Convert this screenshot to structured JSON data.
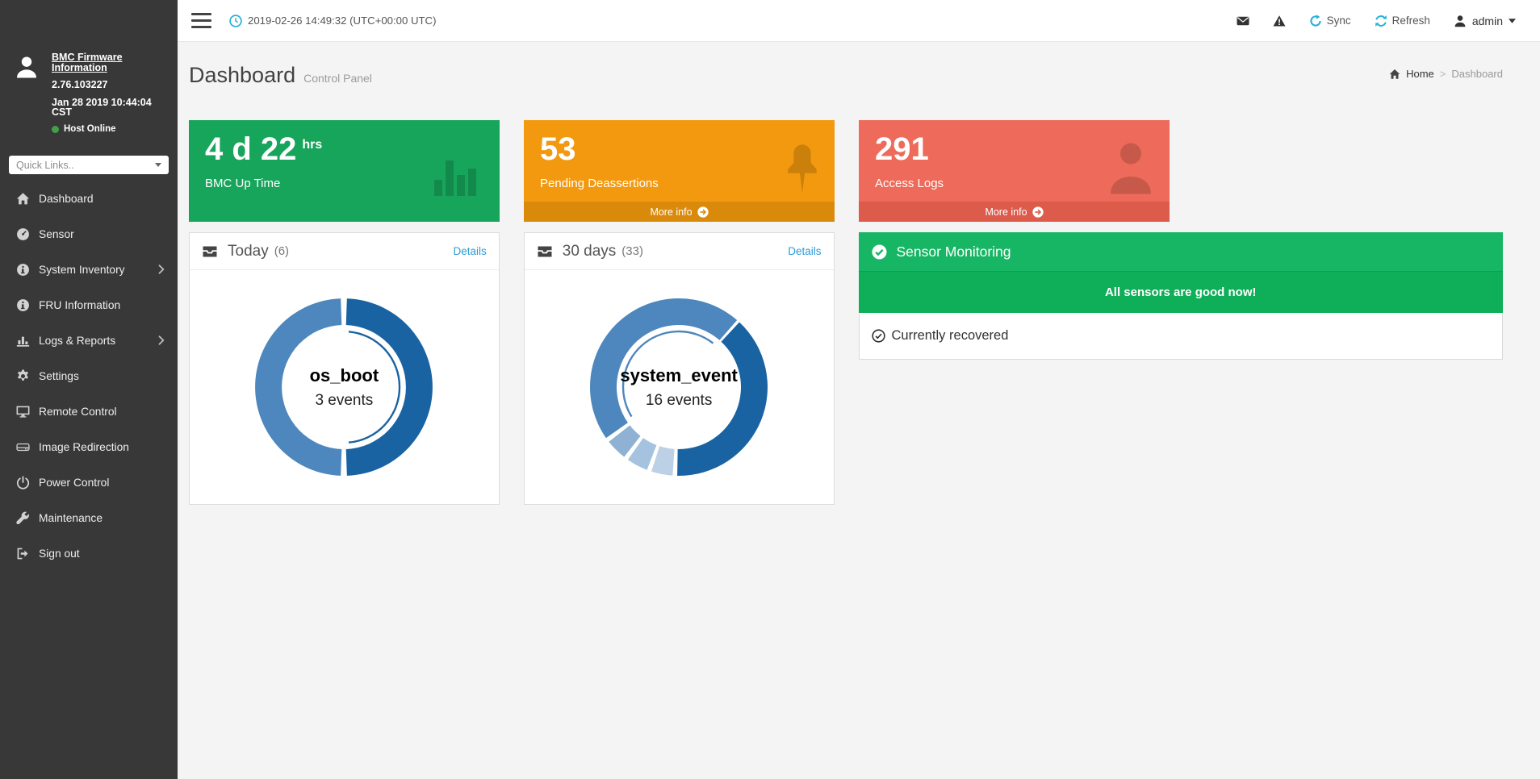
{
  "colors": {
    "accent_cyan": "#25b2d8",
    "link_blue": "#2d9bd8",
    "host_online_green": "#43a047",
    "sidebar_bg": "#383838"
  },
  "sidebar": {
    "firmware_link": "BMC Firmware Information",
    "firmware_version": "2.76.103227",
    "firmware_date": "Jan 28 2019 10:44:04 CST",
    "host_status": "Host Online",
    "quick_links_placeholder": "Quick Links..",
    "menu": [
      {
        "label": "Dashboard",
        "icon": "home"
      },
      {
        "label": "Sensor",
        "icon": "gauge"
      },
      {
        "label": "System Inventory",
        "icon": "info",
        "expandable": true
      },
      {
        "label": "FRU Information",
        "icon": "info"
      },
      {
        "label": "Logs & Reports",
        "icon": "chart-bar",
        "expandable": true
      },
      {
        "label": "Settings",
        "icon": "gear"
      },
      {
        "label": "Remote Control",
        "icon": "monitor"
      },
      {
        "label": "Image Redirection",
        "icon": "hdd"
      },
      {
        "label": "Power Control",
        "icon": "power"
      },
      {
        "label": "Maintenance",
        "icon": "wrench"
      },
      {
        "label": "Sign out",
        "icon": "signout"
      }
    ]
  },
  "topbar": {
    "datetime": "2019-02-26 14:49:32 (UTC+00:00 UTC)",
    "sync_label": "Sync",
    "refresh_label": "Refresh",
    "user": "admin",
    "icons": [
      "clock",
      "envelope",
      "warning",
      "sync",
      "refresh",
      "user",
      "caret-down"
    ]
  },
  "page": {
    "title": "Dashboard",
    "subtitle": "Control Panel",
    "breadcrumb_home": "Home",
    "breadcrumb_separator": ">",
    "breadcrumb_current": "Dashboard"
  },
  "stat_cards": [
    {
      "value": "4 d 22",
      "unit": "hrs",
      "label": "BMC Up Time",
      "color": "#17a55b",
      "icon": "bars"
    },
    {
      "value": "53",
      "label": "Pending Deassertions",
      "color": "#f2990f",
      "band_color": "#da8a0b",
      "more_info_label": "More info",
      "icon": "pin"
    },
    {
      "value": "291",
      "label": "Access Logs",
      "color": "#ee6a5a",
      "band_color": "#dc5b4b",
      "more_info_label": "More info",
      "icon": "person"
    }
  ],
  "chart_data": [
    {
      "type": "donut",
      "title": "Today",
      "count": 6,
      "count_display": "(6)",
      "details_label": "Details",
      "center_label": "os_boot",
      "center_sublabel": "3 events",
      "segments": [
        {
          "color": "#1a63a2",
          "from": 2,
          "to": 178,
          "selected": true
        },
        {
          "color": "#4d87bd",
          "from": 182,
          "to": 358
        }
      ]
    },
    {
      "type": "donut",
      "title": "30 days",
      "count": 33,
      "count_display": "(33)",
      "details_label": "Details",
      "center_label": "system_event",
      "center_sublabel": "16 events",
      "segments": [
        {
          "color": "#1a63a2",
          "from": 43,
          "to": 181
        },
        {
          "color": "#bdd1e6",
          "from": 184,
          "to": 198
        },
        {
          "color": "#a5c2de",
          "from": 201,
          "to": 215
        },
        {
          "color": "#8fb2d4",
          "from": 218,
          "to": 232
        },
        {
          "color": "#4d87bd",
          "from": 235,
          "to": 401,
          "selected": true
        }
      ]
    }
  ],
  "sensor_monitoring": {
    "title": "Sensor Monitoring",
    "message": "All sensors are good now!",
    "status": "Currently recovered",
    "header_color": "#17b664",
    "body_color": "#0fae58"
  }
}
